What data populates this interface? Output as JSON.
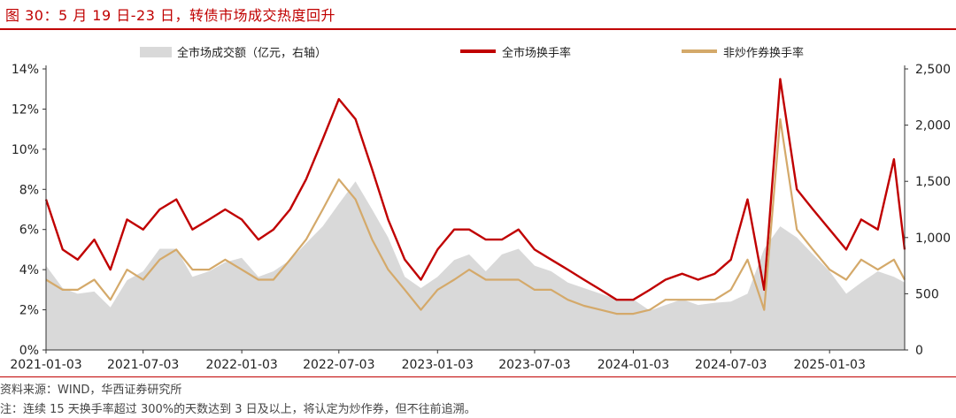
{
  "figure": {
    "title": "图 30：5 月 19 日-23 日，转债市场成交热度回升",
    "source": "资料来源：WIND，华西证券研究所",
    "footnote": "注：连续 15 天换手率超过 300%的天数达到 3 日及以上，将认定为炒作券，但不往前追溯。"
  },
  "colors": {
    "accent": "#c00000",
    "volume": "#d9d9d9",
    "total_turnover": "#c00000",
    "nonspec_turnover": "#d4a96a"
  },
  "chart_data": {
    "type": "line",
    "x_ticks": [
      "2021-01-03",
      "2021-07-03",
      "2022-01-03",
      "2022-07-03",
      "2023-01-03",
      "2023-07-03",
      "2024-01-03",
      "2024-07-03",
      "2025-01-03"
    ],
    "x_range": [
      "2021-01-03",
      "2025-05-23"
    ],
    "y_left": {
      "ticks": [
        "0%",
        "2%",
        "4%",
        "6%",
        "8%",
        "10%",
        "12%",
        "14%"
      ],
      "range": [
        0,
        14
      ],
      "unit": "%"
    },
    "y_right": {
      "ticks": [
        "0",
        "500",
        "1,000",
        "1,500",
        "2,000",
        "2,500"
      ],
      "range": [
        0,
        2500
      ]
    },
    "legend": [
      "全市场成交额（亿元，右轴）",
      "全市场换手率",
      "非炒作券换手率"
    ],
    "x": [
      "2021-01-03",
      "2021-02-03",
      "2021-03-03",
      "2021-04-03",
      "2021-05-03",
      "2021-06-03",
      "2021-07-03",
      "2021-08-03",
      "2021-09-03",
      "2021-10-03",
      "2021-11-03",
      "2021-12-03",
      "2022-01-03",
      "2022-02-03",
      "2022-03-03",
      "2022-04-03",
      "2022-05-03",
      "2022-06-03",
      "2022-07-03",
      "2022-08-03",
      "2022-09-03",
      "2022-10-03",
      "2022-11-03",
      "2022-12-03",
      "2023-01-03",
      "2023-02-03",
      "2023-03-03",
      "2023-04-03",
      "2023-05-03",
      "2023-06-03",
      "2023-07-03",
      "2023-08-03",
      "2023-09-03",
      "2023-10-03",
      "2023-11-03",
      "2023-12-03",
      "2024-01-03",
      "2024-02-03",
      "2024-03-03",
      "2024-04-03",
      "2024-05-03",
      "2024-06-03",
      "2024-07-03",
      "2024-08-03",
      "2024-09-03",
      "2024-10-03",
      "2024-11-03",
      "2024-12-03",
      "2025-01-03",
      "2025-02-03",
      "2025-03-03",
      "2025-04-03",
      "2025-05-03",
      "2025-05-23"
    ],
    "series": [
      {
        "name": "全市场成交额（亿元，右轴）",
        "axis": "right",
        "type": "area",
        "values": [
          750,
          550,
          500,
          520,
          380,
          620,
          700,
          900,
          900,
          650,
          700,
          780,
          820,
          650,
          700,
          800,
          950,
          1100,
          1300,
          1500,
          1250,
          1000,
          650,
          550,
          650,
          800,
          850,
          700,
          850,
          900,
          750,
          700,
          600,
          550,
          500,
          450,
          450,
          350,
          400,
          450,
          400,
          420,
          430,
          500,
          900,
          1100,
          1000,
          850,
          700,
          500,
          600,
          700,
          650,
          600
        ]
      },
      {
        "name": "全市场换手率",
        "axis": "left",
        "values": [
          7.5,
          5.0,
          4.5,
          5.5,
          4.0,
          6.5,
          6.0,
          7.0,
          7.5,
          6.0,
          6.5,
          7.0,
          6.5,
          5.5,
          6.0,
          7.0,
          8.5,
          10.5,
          12.5,
          11.5,
          9.0,
          6.5,
          4.5,
          3.5,
          5.0,
          6.0,
          6.0,
          5.5,
          5.5,
          6.0,
          5.0,
          4.5,
          4.0,
          3.5,
          3.0,
          2.5,
          2.5,
          3.0,
          3.5,
          3.8,
          3.5,
          3.8,
          4.5,
          7.5,
          3.0,
          13.5,
          8.0,
          7.0,
          6.0,
          5.0,
          6.5,
          6.0,
          9.5,
          5.0
        ]
      },
      {
        "name": "非炒作券换手率",
        "axis": "left",
        "values": [
          3.5,
          3.0,
          3.0,
          3.5,
          2.5,
          4.0,
          3.5,
          4.5,
          5.0,
          4.0,
          4.0,
          4.5,
          4.0,
          3.5,
          3.5,
          4.5,
          5.5,
          7.0,
          8.5,
          7.5,
          5.5,
          4.0,
          3.0,
          2.0,
          3.0,
          3.5,
          4.0,
          3.5,
          3.5,
          3.5,
          3.0,
          3.0,
          2.5,
          2.2,
          2.0,
          1.8,
          1.8,
          2.0,
          2.5,
          2.5,
          2.5,
          2.5,
          3.0,
          4.5,
          2.0,
          11.5,
          6.0,
          5.0,
          4.0,
          3.5,
          4.5,
          4.0,
          4.5,
          3.5
        ]
      }
    ]
  }
}
